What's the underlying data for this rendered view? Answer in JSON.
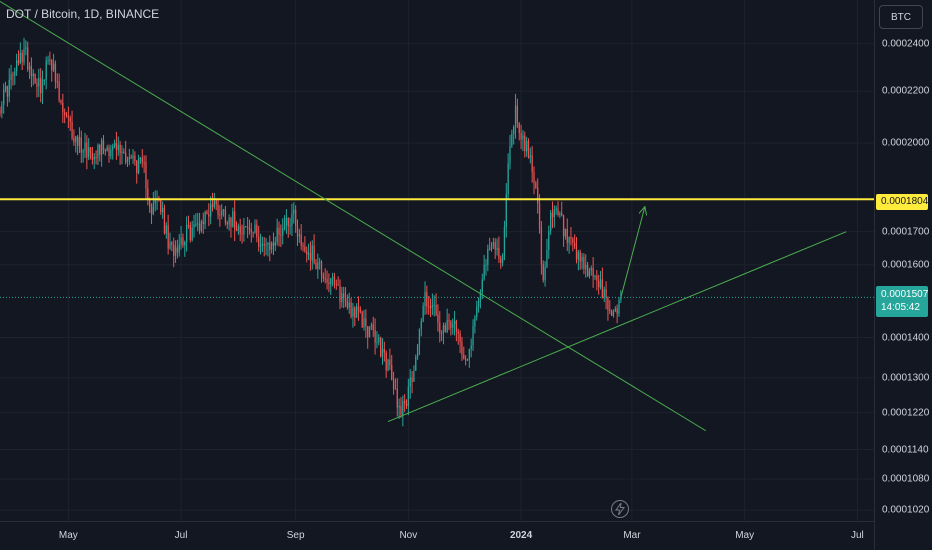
{
  "header": {
    "title": "DOT / Bitcoin, 1D, BINANCE",
    "currency_button": "BTC"
  },
  "price_scale": {
    "labels": [
      "0.0002400",
      "0.0002200",
      "0.0002000",
      "0.0001700",
      "0.0001600",
      "0.0001400",
      "0.0001300",
      "0.0001220",
      "0.0001140",
      "0.0001080",
      "0.0001020"
    ],
    "level_badge": "0.0001804",
    "last_price": "0.0001507",
    "countdown": "14:05:42"
  },
  "time_axis": {
    "labels": [
      "May",
      "Jul",
      "Sep",
      "Nov",
      "2024",
      "Mar",
      "May",
      "Jul"
    ]
  },
  "colors": {
    "background": "#131722",
    "up": "#26a69a",
    "down": "#ef5350",
    "level_line": "#ffeb3b",
    "trendlines": "#4caf50",
    "grid": "#1e222d"
  },
  "icons": {
    "flash": "flash-icon"
  },
  "chart_data": {
    "type": "candlestick",
    "title": "DOT / Bitcoin, 1D, BINANCE",
    "y_scale": "log",
    "ylim": [
      0.0001,
      0.00026
    ],
    "xlim": [
      "2023-03-25",
      "2024-07-10"
    ],
    "y_ticks": [
      0.00024,
      0.00022,
      0.0002,
      0.00017,
      0.00016,
      0.00014,
      0.00013,
      0.000122,
      0.000114,
      0.000108,
      0.000102
    ],
    "x_ticks": [
      "May",
      "Jul",
      "Sep",
      "Nov",
      "2024",
      "Mar",
      "May",
      "Jul"
    ],
    "horizontal_level": 0.0001804,
    "last_price": 0.0001507,
    "grid": true,
    "price_path": [
      [
        "2023-03-25",
        0.000215
      ],
      [
        "2023-04-01",
        0.000226
      ],
      [
        "2023-04-07",
        0.000237
      ],
      [
        "2023-04-12",
        0.000227
      ],
      [
        "2023-04-17",
        0.000222
      ],
      [
        "2023-04-21",
        0.000236
      ],
      [
        "2023-04-27",
        0.000213
      ],
      [
        "2023-05-05",
        0.000201
      ],
      [
        "2023-05-13",
        0.000197
      ],
      [
        "2023-05-20",
        0.000199
      ],
      [
        "2023-05-27",
        0.000198
      ],
      [
        "2023-06-05",
        0.000194
      ],
      [
        "2023-06-11",
        0.00019
      ],
      [
        "2023-06-15",
        0.000177
      ],
      [
        "2023-06-19",
        0.00018
      ],
      [
        "2023-06-25",
        0.000164
      ],
      [
        "2023-07-03",
        0.000169
      ],
      [
        "2023-07-08",
        0.000171
      ],
      [
        "2023-07-13",
        0.000174
      ],
      [
        "2023-07-18",
        0.000179
      ],
      [
        "2023-07-24",
        0.000176
      ],
      [
        "2023-08-02",
        0.000172
      ],
      [
        "2023-08-11",
        0.000169
      ],
      [
        "2023-08-17",
        0.000164
      ],
      [
        "2023-08-24",
        0.000171
      ],
      [
        "2023-08-31",
        0.000176
      ],
      [
        "2023-09-04",
        0.000166
      ],
      [
        "2023-09-10",
        0.000163
      ],
      [
        "2023-09-18",
        0.000156
      ],
      [
        "2023-09-26",
        0.000151
      ],
      [
        "2023-10-06",
        0.000145
      ],
      [
        "2023-10-14",
        0.00014
      ],
      [
        "2023-10-21",
        0.000133
      ],
      [
        "2023-10-27",
        0.000123
      ],
      [
        "2023-11-01",
        0.000126
      ],
      [
        "2023-11-05",
        0.000136
      ],
      [
        "2023-11-10",
        0.000151
      ],
      [
        "2023-11-15",
        0.000147
      ],
      [
        "2023-11-19",
        0.00014
      ],
      [
        "2023-11-24",
        0.000144
      ],
      [
        "2023-11-29",
        0.000139
      ],
      [
        "2023-12-03",
        0.000135
      ],
      [
        "2023-12-07",
        0.000145
      ],
      [
        "2023-12-11",
        0.000158
      ],
      [
        "2023-12-17",
        0.000166
      ],
      [
        "2023-12-22",
        0.000162
      ],
      [
        "2023-12-26",
        0.000201
      ],
      [
        "2023-12-29",
        0.000212
      ],
      [
        "2024-01-01",
        0.000203
      ],
      [
        "2024-01-05",
        0.000196
      ],
      [
        "2024-01-09",
        0.000187
      ],
      [
        "2024-01-13",
        0.000153
      ],
      [
        "2024-01-17",
        0.000174
      ],
      [
        "2024-01-21",
        0.000176
      ],
      [
        "2024-01-26",
        0.000167
      ],
      [
        "2024-02-01",
        0.000161
      ],
      [
        "2024-02-06",
        0.000158
      ],
      [
        "2024-02-11",
        0.000156
      ],
      [
        "2024-02-16",
        0.000149
      ],
      [
        "2024-02-20",
        0.000146
      ],
      [
        "2024-02-24",
        0.0001507
      ]
    ],
    "annotations": [
      {
        "type": "trendline",
        "from": [
          "2023-03-20",
          0.000262
        ],
        "to": [
          "2024-04-10",
          0.000118
        ]
      },
      {
        "type": "trendline",
        "from": [
          "2023-10-21",
          0.00012
        ],
        "to": [
          "2024-06-25",
          0.00017
        ]
      },
      {
        "type": "arrow",
        "from": [
          "2024-02-24",
          0.0001507
        ],
        "to": [
          "2024-03-08",
          0.000178
        ]
      }
    ]
  }
}
